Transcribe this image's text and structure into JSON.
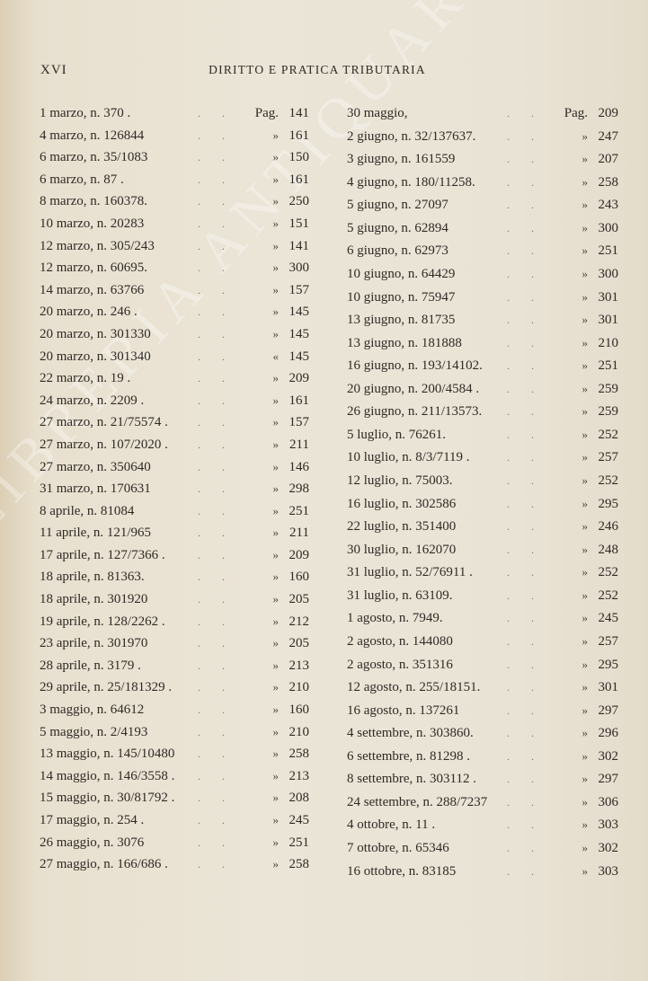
{
  "header": {
    "folio": "XVI",
    "title": "DIRITTO E PRATICA TRIBUTARIA"
  },
  "watermark": "LIBRERIA ANTIQUARIA CESARE ROMA",
  "left_column": [
    {
      "label": "1 marzo, n. 370 .",
      "ref": "Pag.",
      "page": "141"
    },
    {
      "label": "4 marzo, n. 126844",
      "ref": "»",
      "page": "161"
    },
    {
      "label": "6 marzo, n. 35/1083",
      "ref": "»",
      "page": "150"
    },
    {
      "label": "6 marzo, n. 87 .",
      "ref": "»",
      "page": "161"
    },
    {
      "label": "8 marzo, n. 160378.",
      "ref": "»",
      "page": "250"
    },
    {
      "label": "10 marzo, n. 20283",
      "ref": "»",
      "page": "151"
    },
    {
      "label": "12 marzo, n. 305/243",
      "ref": "»",
      "page": "141"
    },
    {
      "label": "12 marzo, n. 60695.",
      "ref": "»",
      "page": "300"
    },
    {
      "label": "14 marzo, n. 63766",
      "ref": "»",
      "page": "157"
    },
    {
      "label": "20 marzo, n. 246 .",
      "ref": "»",
      "page": "145"
    },
    {
      "label": "20 marzo, n. 301330",
      "ref": "»",
      "page": "145"
    },
    {
      "label": "20 marzo, n. 301340",
      "ref": "«",
      "page": "145"
    },
    {
      "label": "22 marzo, n. 19 .",
      "ref": "»",
      "page": "209"
    },
    {
      "label": "24 marzo, n. 2209 .",
      "ref": "»",
      "page": "161"
    },
    {
      "label": "27 marzo, n. 21/75574 .",
      "ref": "»",
      "page": "157"
    },
    {
      "label": "27 marzo, n. 107/2020 .",
      "ref": "»",
      "page": "211"
    },
    {
      "label": "27 marzo, n. 350640",
      "ref": "»",
      "page": "146"
    },
    {
      "label": "31 marzo, n. 170631",
      "ref": "»",
      "page": "298"
    },
    {
      "label": "8 aprile, n. 81084",
      "ref": "»",
      "page": "251"
    },
    {
      "label": "11 aprile, n. 121/965",
      "ref": "»",
      "page": "211"
    },
    {
      "label": "17 aprile, n. 127/7366 .",
      "ref": "»",
      "page": "209"
    },
    {
      "label": "18 aprile, n. 81363.",
      "ref": "»",
      "page": "160"
    },
    {
      "label": "18 aprile, n. 301920",
      "ref": "»",
      "page": "205"
    },
    {
      "label": "19 aprile, n. 128/2262 .",
      "ref": "»",
      "page": "212"
    },
    {
      "label": "23 aprile, n. 301970",
      "ref": "»",
      "page": "205"
    },
    {
      "label": "28 aprile, n. 3179 .",
      "ref": "»",
      "page": "213"
    },
    {
      "label": "29 aprile, n. 25/181329 .",
      "ref": "»",
      "page": "210"
    },
    {
      "label": "3 maggio, n. 64612",
      "ref": "»",
      "page": "160"
    },
    {
      "label": "5 maggio, n. 2/4193",
      "ref": "»",
      "page": "210"
    },
    {
      "label": "13 maggio, n. 145/10480",
      "ref": "»",
      "page": "258"
    },
    {
      "label": "14 maggio, n. 146/3558 .",
      "ref": "»",
      "page": "213"
    },
    {
      "label": "15 maggio, n. 30/81792 .",
      "ref": "»",
      "page": "208"
    },
    {
      "label": "17 maggio, n. 254 .",
      "ref": "»",
      "page": "245"
    },
    {
      "label": "26 maggio, n. 3076",
      "ref": "»",
      "page": "251"
    },
    {
      "label": "27 maggio, n. 166/686 .",
      "ref": "»",
      "page": "258"
    }
  ],
  "right_column": [
    {
      "label": "30 maggio,",
      "ref": "Pag.",
      "page": "209"
    },
    {
      "label": "2 giugno, n. 32/137637.",
      "ref": "»",
      "page": "247"
    },
    {
      "label": "3 giugno, n. 161559",
      "ref": "»",
      "page": "207"
    },
    {
      "label": "4 giugno, n. 180/11258.",
      "ref": "»",
      "page": "258"
    },
    {
      "label": "5 giugno, n. 27097",
      "ref": "»",
      "page": "243"
    },
    {
      "label": "5 giugno, n. 62894",
      "ref": "»",
      "page": "300"
    },
    {
      "label": "6 giugno, n. 62973",
      "ref": "»",
      "page": "251"
    },
    {
      "label": "10 giugno, n. 64429",
      "ref": "»",
      "page": "300"
    },
    {
      "label": "10 giugno, n. 75947",
      "ref": "»",
      "page": "301"
    },
    {
      "label": "13 giugno, n. 81735",
      "ref": "»",
      "page": "301"
    },
    {
      "label": "13 giugno, n. 181888",
      "ref": "»",
      "page": "210"
    },
    {
      "label": "16 giugno, n. 193/14102.",
      "ref": "»",
      "page": "251"
    },
    {
      "label": "20 giugno, n. 200/4584 .",
      "ref": "»",
      "page": "259"
    },
    {
      "label": "26 giugno, n. 211/13573.",
      "ref": "»",
      "page": "259"
    },
    {
      "label": "5 luglio, n. 76261.",
      "ref": "»",
      "page": "252"
    },
    {
      "label": "10 luglio, n. 8/3/7119 .",
      "ref": "»",
      "page": "257"
    },
    {
      "label": "12 luglio, n. 75003.",
      "ref": "»",
      "page": "252"
    },
    {
      "label": "16 luglio, n. 302586",
      "ref": "»",
      "page": "295"
    },
    {
      "label": "22 luglio, n. 351400",
      "ref": "»",
      "page": "246"
    },
    {
      "label": "30 luglio, n. 162070",
      "ref": "»",
      "page": "248"
    },
    {
      "label": "31 luglio, n. 52/76911 .",
      "ref": "»",
      "page": "252"
    },
    {
      "label": "31 luglio, n. 63109.",
      "ref": "»",
      "page": "252"
    },
    {
      "label": "1 agosto, n. 7949.",
      "ref": "»",
      "page": "245"
    },
    {
      "label": "2 agosto, n. 144080",
      "ref": "»",
      "page": "257"
    },
    {
      "label": "2 agosto, n. 351316",
      "ref": "»",
      "page": "295"
    },
    {
      "label": "12 agosto, n. 255/18151.",
      "ref": "»",
      "page": "301"
    },
    {
      "label": "16 agosto, n. 137261",
      "ref": "»",
      "page": "297"
    },
    {
      "label": "4 settembre, n. 303860.",
      "ref": "»",
      "page": "296"
    },
    {
      "label": "6 settembre, n. 81298 .",
      "ref": "»",
      "page": "302"
    },
    {
      "label": "8 settembre, n. 303112 .",
      "ref": "»",
      "page": "297"
    },
    {
      "label": "24 settembre, n. 288/7237",
      "ref": "»",
      "page": "306"
    },
    {
      "label": "4 ottobre, n. 11 .",
      "ref": "»",
      "page": "303"
    },
    {
      "label": "7 ottobre, n. 65346",
      "ref": "»",
      "page": "302"
    },
    {
      "label": "16 ottobre, n. 83185",
      "ref": "»",
      "page": "303"
    }
  ]
}
